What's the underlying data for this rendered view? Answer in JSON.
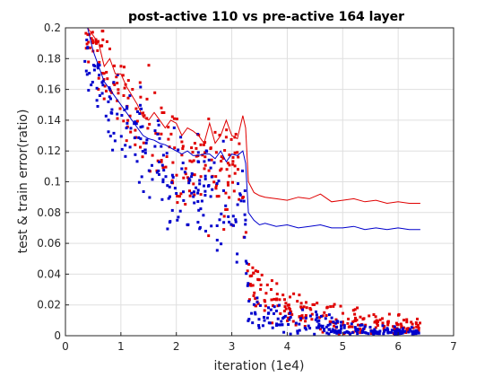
{
  "chart_data": {
    "type": "line",
    "title": "post-active 110 vs pre-active 164 layer",
    "xlabel": "iteration (1e4)",
    "ylabel": "test & train error(ratio)",
    "xlim": [
      0,
      7
    ],
    "ylim": [
      0,
      0.2
    ],
    "x_ticks": [
      "0",
      "1",
      "2",
      "3",
      "4",
      "5",
      "6",
      "7"
    ],
    "y_ticks": [
      "0",
      "0.02",
      "0.04",
      "0.06",
      "0.08",
      "0.1",
      "0.12",
      "0.14",
      "0.16",
      "0.18",
      "0.2"
    ],
    "grid": true,
    "legend": "none",
    "series": [
      {
        "style": "line",
        "color": "#e00000",
        "x": [
          0.4,
          0.5,
          0.6,
          0.7,
          0.8,
          0.9,
          1.0,
          1.1,
          1.2,
          1.3,
          1.4,
          1.5,
          1.6,
          1.7,
          1.8,
          1.9,
          2.0,
          2.1,
          2.2,
          2.3,
          2.4,
          2.5,
          2.6,
          2.7,
          2.8,
          2.9,
          3.0,
          3.1,
          3.2,
          3.25,
          3.3,
          3.4,
          3.5,
          3.6,
          3.8,
          4.0,
          4.2,
          4.4,
          4.6,
          4.8,
          5.0,
          5.2,
          5.4,
          5.6,
          5.8,
          6.0,
          6.2,
          6.4
        ],
        "y": [
          0.2,
          0.195,
          0.19,
          0.175,
          0.18,
          0.17,
          0.17,
          0.162,
          0.156,
          0.15,
          0.142,
          0.14,
          0.145,
          0.14,
          0.135,
          0.14,
          0.138,
          0.13,
          0.135,
          0.133,
          0.13,
          0.125,
          0.138,
          0.125,
          0.13,
          0.14,
          0.13,
          0.128,
          0.143,
          0.135,
          0.1,
          0.093,
          0.091,
          0.09,
          0.089,
          0.088,
          0.09,
          0.089,
          0.092,
          0.087,
          0.088,
          0.089,
          0.087,
          0.088,
          0.086,
          0.087,
          0.086,
          0.086
        ]
      },
      {
        "style": "line",
        "color": "#0000cc",
        "x": [
          0.4,
          0.5,
          0.6,
          0.7,
          0.8,
          0.9,
          1.0,
          1.1,
          1.2,
          1.3,
          1.4,
          1.5,
          1.6,
          1.7,
          1.8,
          1.9,
          2.0,
          2.1,
          2.2,
          2.3,
          2.4,
          2.5,
          2.6,
          2.7,
          2.8,
          2.9,
          3.0,
          3.1,
          3.2,
          3.25,
          3.3,
          3.4,
          3.5,
          3.6,
          3.8,
          4.0,
          4.2,
          4.4,
          4.6,
          4.8,
          5.0,
          5.2,
          5.4,
          5.6,
          5.8,
          6.0,
          6.2,
          6.4
        ],
        "y": [
          0.2,
          0.185,
          0.175,
          0.165,
          0.16,
          0.155,
          0.15,
          0.145,
          0.14,
          0.135,
          0.13,
          0.128,
          0.127,
          0.125,
          0.124,
          0.122,
          0.12,
          0.118,
          0.12,
          0.117,
          0.117,
          0.118,
          0.118,
          0.115,
          0.12,
          0.113,
          0.118,
          0.117,
          0.12,
          0.112,
          0.08,
          0.075,
          0.072,
          0.073,
          0.071,
          0.072,
          0.07,
          0.071,
          0.072,
          0.07,
          0.07,
          0.071,
          0.069,
          0.07,
          0.069,
          0.07,
          0.069,
          0.069
        ]
      },
      {
        "style": "scatter",
        "color": "#e00000",
        "envelope": {
          "x": [
            0.35,
            0.6,
            1.0,
            1.5,
            2.0,
            2.5,
            3.0,
            3.2,
            3.3,
            3.6,
            4.0,
            4.5,
            5.0,
            5.5,
            6.0,
            6.4
          ],
          "y": [
            0.195,
            0.18,
            0.155,
            0.135,
            0.115,
            0.11,
            0.105,
            0.1,
            0.035,
            0.025,
            0.018,
            0.013,
            0.01,
            0.008,
            0.006,
            0.005
          ],
          "spread": [
            0.01,
            0.014,
            0.018,
            0.022,
            0.024,
            0.024,
            0.024,
            0.026,
            0.01,
            0.01,
            0.009,
            0.008,
            0.007,
            0.006,
            0.005,
            0.004
          ]
        },
        "count": 420
      },
      {
        "style": "scatter",
        "color": "#0000cc",
        "envelope": {
          "x": [
            0.35,
            0.6,
            1.0,
            1.5,
            2.0,
            2.5,
            3.0,
            3.2,
            3.3,
            3.6,
            4.0,
            4.5,
            5.0,
            5.5,
            6.0,
            6.4
          ],
          "y": [
            0.185,
            0.165,
            0.14,
            0.12,
            0.1,
            0.092,
            0.09,
            0.085,
            0.022,
            0.015,
            0.01,
            0.007,
            0.004,
            0.003,
            0.002,
            0.002
          ],
          "spread": [
            0.012,
            0.016,
            0.02,
            0.024,
            0.024,
            0.024,
            0.024,
            0.026,
            0.01,
            0.009,
            0.007,
            0.006,
            0.004,
            0.003,
            0.002,
            0.002
          ]
        },
        "count": 420
      }
    ]
  }
}
